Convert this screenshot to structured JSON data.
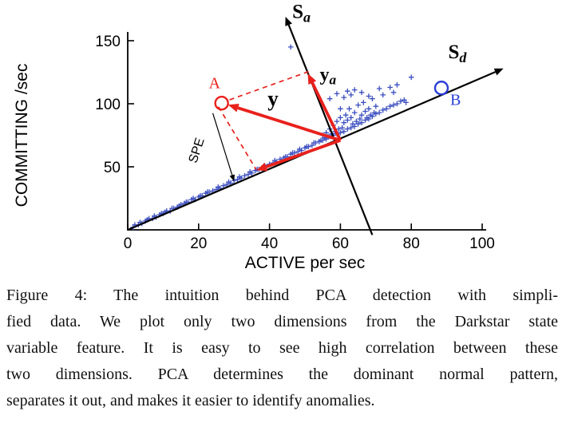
{
  "figure": {
    "caption_lines": [
      "Figure 4: The intuition behind PCA detection with simpli-",
      "fied data. We plot only two dimensions from the Darkstar state",
      "variable feature. It is easy to see high correlation between these",
      "two dimensions. PCA determines the dominant normal pattern,",
      "separates it out, and makes it easier to identify anomalies."
    ]
  },
  "chart_data": {
    "type": "scatter",
    "title": "",
    "xlabel": "ACTIVE per sec",
    "ylabel": "COMMITTING /sec",
    "xlim": [
      0,
      100
    ],
    "ylim": [
      0,
      150
    ],
    "xticks": [
      0,
      20,
      40,
      60,
      80,
      100
    ],
    "yticks": [
      50,
      100,
      150
    ],
    "marker": "+",
    "marker_color": "#3b4ec0",
    "accent_red": "#e8211c",
    "accent_blue": "#2b3fd6",
    "points": [
      [
        1.5,
        2
      ],
      [
        2,
        4
      ],
      [
        3,
        4
      ],
      [
        3.5,
        6
      ],
      [
        4,
        5
      ],
      [
        5,
        7
      ],
      [
        5.5,
        8
      ],
      [
        6,
        9
      ],
      [
        7,
        9
      ],
      [
        7.5,
        11
      ],
      [
        8,
        10
      ],
      [
        9,
        12
      ],
      [
        9.5,
        13
      ],
      [
        10,
        13
      ],
      [
        10.5,
        14
      ],
      [
        11,
        15
      ],
      [
        12,
        15
      ],
      [
        12.5,
        17
      ],
      [
        13,
        17
      ],
      [
        14,
        18
      ],
      [
        14.5,
        19
      ],
      [
        15,
        20
      ],
      [
        16,
        21
      ],
      [
        16.5,
        22
      ],
      [
        17,
        22
      ],
      [
        18,
        24
      ],
      [
        18.5,
        25
      ],
      [
        19,
        24
      ],
      [
        20,
        26
      ],
      [
        20.5,
        27
      ],
      [
        21,
        27
      ],
      [
        22,
        29
      ],
      [
        22.5,
        30
      ],
      [
        23,
        30
      ],
      [
        24,
        31
      ],
      [
        25,
        32
      ],
      [
        25.5,
        34
      ],
      [
        26,
        33
      ],
      [
        27,
        35
      ],
      [
        28,
        36
      ],
      [
        28.5,
        38
      ],
      [
        29,
        37
      ],
      [
        30,
        39
      ],
      [
        31,
        40
      ],
      [
        31.5,
        42
      ],
      [
        32,
        41
      ],
      [
        33,
        43
      ],
      [
        34,
        44
      ],
      [
        34.5,
        46
      ],
      [
        35,
        45
      ],
      [
        36,
        47
      ],
      [
        36.5,
        48
      ],
      [
        37,
        48
      ],
      [
        38,
        49
      ],
      [
        38.5,
        51
      ],
      [
        39,
        50
      ],
      [
        40,
        52
      ],
      [
        41,
        53
      ],
      [
        41.5,
        55
      ],
      [
        42,
        54
      ],
      [
        43,
        56
      ],
      [
        44,
        57
      ],
      [
        44.5,
        58
      ],
      [
        45,
        58
      ],
      [
        46,
        60
      ],
      [
        46.5,
        61
      ],
      [
        47,
        61
      ],
      [
        48,
        62
      ],
      [
        48.5,
        64
      ],
      [
        49,
        63
      ],
      [
        50,
        65
      ],
      [
        50.5,
        66
      ],
      [
        51,
        66
      ],
      [
        52,
        67
      ],
      [
        52.5,
        69
      ],
      [
        53,
        69
      ],
      [
        54,
        70
      ],
      [
        54.5,
        71
      ],
      [
        55,
        71
      ],
      [
        55,
        75
      ],
      [
        55.5,
        73
      ],
      [
        56,
        72
      ],
      [
        56,
        77
      ],
      [
        56.5,
        74
      ],
      [
        57,
        74
      ],
      [
        57,
        80
      ],
      [
        57.5,
        76
      ],
      [
        58,
        75
      ],
      [
        58,
        83
      ],
      [
        58.5,
        78
      ],
      [
        59,
        76
      ],
      [
        59,
        86
      ],
      [
        59.5,
        80
      ],
      [
        60,
        77
      ],
      [
        60,
        89
      ],
      [
        60,
        96
      ],
      [
        60.5,
        81
      ],
      [
        61,
        78
      ],
      [
        61,
        85
      ],
      [
        61.5,
        91
      ],
      [
        62,
        80
      ],
      [
        62,
        87
      ],
      [
        62.5,
        96
      ],
      [
        63,
        81
      ],
      [
        63,
        89
      ],
      [
        63.5,
        84
      ],
      [
        64,
        82
      ],
      [
        64,
        93
      ],
      [
        64.5,
        86
      ],
      [
        65,
        84
      ],
      [
        65,
        99
      ],
      [
        65.5,
        88
      ],
      [
        66,
        85
      ],
      [
        66,
        91
      ],
      [
        66.5,
        101
      ],
      [
        67,
        87
      ],
      [
        67,
        94
      ],
      [
        67.5,
        89
      ],
      [
        68,
        88
      ],
      [
        68,
        96
      ],
      [
        68.5,
        91
      ],
      [
        69,
        90
      ],
      [
        69,
        104
      ],
      [
        69.5,
        93
      ],
      [
        70,
        92
      ],
      [
        70,
        98
      ],
      [
        57,
        104
      ],
      [
        59,
        108
      ],
      [
        61,
        105
      ],
      [
        62,
        110
      ],
      [
        63,
        107
      ],
      [
        64,
        111
      ],
      [
        66,
        109
      ],
      [
        68,
        106
      ],
      [
        71,
        112
      ],
      [
        72,
        107
      ],
      [
        74,
        113
      ],
      [
        75,
        109
      ],
      [
        76,
        115
      ],
      [
        80,
        121
      ],
      [
        71,
        93
      ],
      [
        72,
        95
      ],
      [
        73,
        96
      ],
      [
        74,
        98
      ],
      [
        75,
        99
      ],
      [
        76,
        100
      ],
      [
        77,
        102
      ],
      [
        78,
        103
      ],
      [
        78.5,
        101
      ],
      [
        46,
        145
      ]
    ],
    "annotations": [
      {
        "type": "arrow",
        "from": [
          0,
          0
        ],
        "to": [
          106,
          128
        ],
        "color": "#000000",
        "width": 2.2,
        "head": 11,
        "name": "sd-axis-arrow"
      },
      {
        "type": "arrow",
        "from": [
          69,
          -4
        ],
        "to": [
          44.5,
          169
        ],
        "color": "#000000",
        "width": 2.2,
        "head": 11,
        "name": "sa-axis-arrow"
      },
      {
        "type": "line",
        "from": [
          51,
          125.5
        ],
        "to": [
          28.2,
          102.6
        ],
        "color": "#e8211c",
        "width": 1.7,
        "dash": "6 5",
        "name": "dashed-projection-top"
      },
      {
        "type": "line",
        "from": [
          25.6,
          97.6
        ],
        "to": [
          36.2,
          48
        ],
        "color": "#e8211c",
        "width": 1.7,
        "dash": "6 5",
        "name": "dashed-projection-left"
      },
      {
        "type": "arrow",
        "from": [
          60,
          71
        ],
        "to": [
          28.3,
          99.2
        ],
        "color": "#e8211c",
        "width": 3.8,
        "head": 13,
        "name": "vector-y"
      },
      {
        "type": "arrow",
        "from": [
          60,
          71
        ],
        "to": [
          50.8,
          124
        ],
        "color": "#e8211c",
        "width": 3.8,
        "head": 13,
        "name": "vector-ya"
      },
      {
        "type": "arrow",
        "from": [
          60,
          71
        ],
        "to": [
          36.3,
          47.2
        ],
        "color": "#e8211c",
        "width": 3.8,
        "head": 13,
        "name": "vector-yd"
      },
      {
        "type": "arrow",
        "from": [
          24,
          92.5
        ],
        "to": [
          30,
          38.5
        ],
        "color": "#000000",
        "width": 1.2,
        "head": 8,
        "name": "spe-arrow"
      },
      {
        "type": "circle",
        "at": [
          26.5,
          100.5
        ],
        "r": 8,
        "color": "#e8211c",
        "width": 2.4,
        "name": "point-a-circle"
      },
      {
        "type": "circle",
        "at": [
          88.5,
          112.5
        ],
        "r": 8,
        "color": "#2b3fd6",
        "width": 2.4,
        "name": "point-b-circle"
      },
      {
        "type": "text",
        "at": [
          41,
          98.5
        ],
        "text": "y",
        "color": "#000000",
        "size": 27,
        "bold": true,
        "italic": false,
        "family": "serif",
        "name": "label-y"
      },
      {
        "type": "text",
        "at": [
          56.5,
          118.5
        ],
        "text": "y",
        "sub": "a",
        "color": "#000000",
        "size": 24,
        "bold": true,
        "italic": false,
        "family": "serif",
        "name": "label-ya"
      },
      {
        "type": "text",
        "at": [
          24.5,
          112.5
        ],
        "text": "A",
        "color": "#e8211c",
        "size": 20,
        "bold": false,
        "italic": false,
        "family": "serif",
        "name": "label-a"
      },
      {
        "type": "text",
        "at": [
          92.5,
          99
        ],
        "text": "B",
        "color": "#2b3fd6",
        "size": 20,
        "bold": false,
        "italic": false,
        "family": "serif",
        "name": "label-b"
      },
      {
        "type": "text",
        "at": [
          49,
          168
        ],
        "text": "S",
        "sub": "a",
        "color": "#000000",
        "size": 25,
        "bold": true,
        "italic": false,
        "family": "serif",
        "name": "label-sa"
      },
      {
        "type": "text",
        "at": [
          93,
          136
        ],
        "text": "S",
        "sub": "d",
        "color": "#000000",
        "size": 25,
        "bold": true,
        "italic": false,
        "family": "serif",
        "name": "label-sd"
      },
      {
        "type": "text",
        "at": [
          20.5,
          62
        ],
        "text": "SPE",
        "color": "#000000",
        "size": 16,
        "bold": false,
        "italic": false,
        "family": "sans",
        "rotate": -72,
        "name": "label-spe"
      }
    ]
  }
}
